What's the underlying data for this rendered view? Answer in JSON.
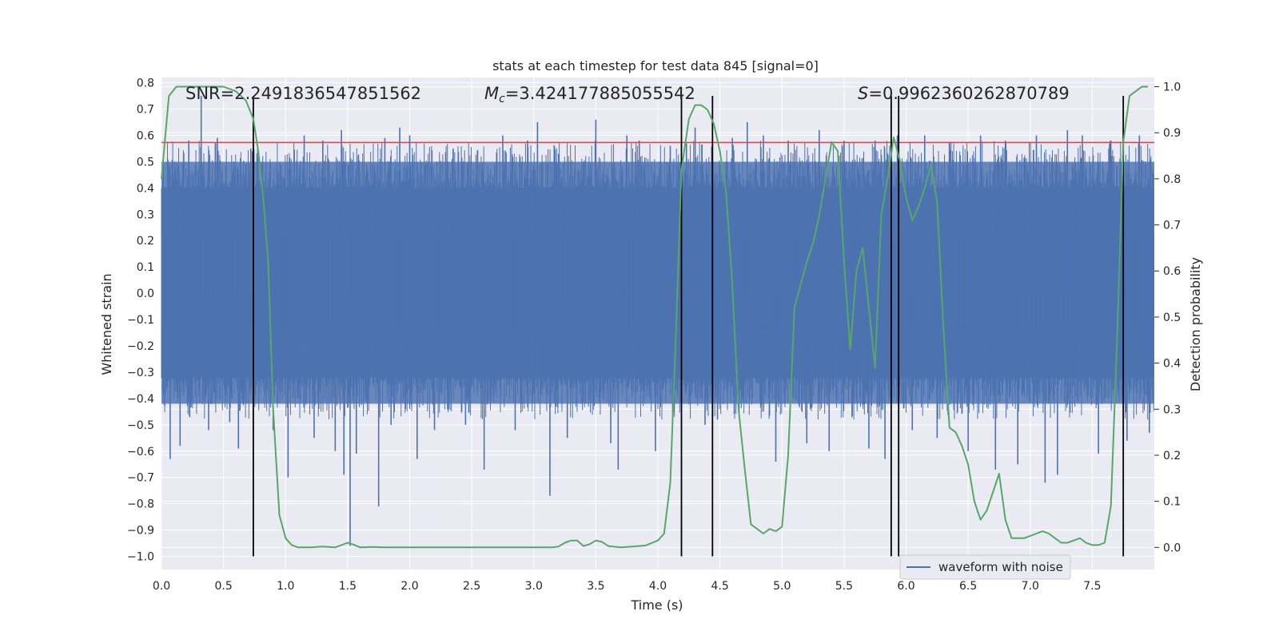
{
  "chart_data": {
    "type": "line",
    "title": "stats at each timestep for test data 845 [signal=0]",
    "xlabel": "Time (s)",
    "ylabel": "Whitened strain",
    "y2label": "Detection probability",
    "xlim": [
      0.0,
      8.0
    ],
    "ylim": [
      -1.05,
      0.82
    ],
    "y2lim": [
      -0.048,
      1.02
    ],
    "x_ticks": [
      "0.0",
      "0.5",
      "1.0",
      "1.5",
      "2.0",
      "2.5",
      "3.0",
      "3.5",
      "4.0",
      "4.5",
      "5.0",
      "5.5",
      "6.0",
      "6.5",
      "7.0",
      "7.5"
    ],
    "y_ticks": [
      "0.8",
      "0.7",
      "0.6",
      "0.5",
      "0.4",
      "0.3",
      "0.2",
      "0.1",
      "0.0",
      "−0.1",
      "−0.2",
      "−0.3",
      "−0.4",
      "−0.5",
      "−0.6",
      "−0.7",
      "−0.8",
      "−0.9",
      "−1.0"
    ],
    "y2_ticks": [
      "1.0",
      "0.9",
      "0.8",
      "0.7",
      "0.6",
      "0.5",
      "0.4",
      "0.3",
      "0.2",
      "0.1",
      "0.0"
    ],
    "grid": true,
    "legend": {
      "entries": [
        "waveform with noise"
      ],
      "placement": "lower-right"
    },
    "annotations": {
      "snr": "SNR=2.2491836547851562",
      "mc_symbol": "M",
      "mc_sub": "c",
      "mc_value": "=3.424177885055542",
      "s_symbol": "S",
      "s_value": "=0.9962360262870789"
    },
    "threshold_line": {
      "axis": "y",
      "value": 0.573,
      "color": "#c44e52"
    },
    "event_lines": {
      "x": [
        0.74,
        4.19,
        4.44,
        5.88,
        5.94,
        7.75
      ],
      "color": "#000000"
    },
    "series": [
      {
        "name": "waveform with noise",
        "axis": "left",
        "color": "#4c72b0",
        "band": {
          "core_low": -0.13,
          "core_high": 0.22,
          "dense_low": -0.42,
          "dense_high": 0.5
        },
        "spikes": [
          [
            0.06,
            0.47
          ],
          [
            0.07,
            -0.63
          ],
          [
            0.15,
            -0.58
          ],
          [
            0.22,
            0.58
          ],
          [
            0.32,
            0.75
          ],
          [
            0.38,
            -0.52
          ],
          [
            0.45,
            0.59
          ],
          [
            0.55,
            -0.49
          ],
          [
            0.62,
            -0.59
          ],
          [
            0.72,
            0.55
          ],
          [
            0.9,
            -0.52
          ],
          [
            1.02,
            -0.7
          ],
          [
            1.15,
            0.6
          ],
          [
            1.23,
            -0.55
          ],
          [
            1.3,
            0.58
          ],
          [
            1.4,
            -0.6
          ],
          [
            1.45,
            0.62
          ],
          [
            1.47,
            -0.69
          ],
          [
            1.52,
            -0.96
          ],
          [
            1.57,
            -0.61
          ],
          [
            1.75,
            -0.81
          ],
          [
            1.8,
            0.59
          ],
          [
            1.85,
            -0.5
          ],
          [
            1.92,
            0.63
          ],
          [
            2.0,
            0.6
          ],
          [
            2.06,
            -0.63
          ],
          [
            2.2,
            -0.52
          ],
          [
            2.35,
            0.55
          ],
          [
            2.45,
            -0.5
          ],
          [
            2.6,
            -0.67
          ],
          [
            2.75,
            0.6
          ],
          [
            2.85,
            -0.52
          ],
          [
            2.95,
            0.58
          ],
          [
            3.03,
            0.65
          ],
          [
            3.13,
            -0.77
          ],
          [
            3.2,
            0.53
          ],
          [
            3.27,
            -0.55
          ],
          [
            3.4,
            0.5
          ],
          [
            3.5,
            0.66
          ],
          [
            3.62,
            -0.57
          ],
          [
            3.68,
            -0.67
          ],
          [
            3.75,
            0.6
          ],
          [
            3.85,
            0.58
          ],
          [
            3.98,
            -0.6
          ],
          [
            4.1,
            0.56
          ],
          [
            4.23,
            0.57
          ],
          [
            4.3,
            0.63
          ],
          [
            4.38,
            -0.5
          ],
          [
            4.48,
            -0.48
          ],
          [
            4.6,
            0.59
          ],
          [
            4.72,
            0.65
          ],
          [
            4.85,
            0.6
          ],
          [
            4.95,
            -0.64
          ],
          [
            5.05,
            0.58
          ],
          [
            5.2,
            -0.57
          ],
          [
            5.3,
            0.62
          ],
          [
            5.38,
            -0.6
          ],
          [
            5.5,
            0.58
          ],
          [
            5.7,
            -0.59
          ],
          [
            5.75,
            0.58
          ],
          [
            5.83,
            -0.63
          ],
          [
            5.93,
            0.6
          ],
          [
            6.05,
            -0.52
          ],
          [
            6.15,
            0.6
          ],
          [
            6.25,
            -0.55
          ],
          [
            6.35,
            0.57
          ],
          [
            6.5,
            -0.6
          ],
          [
            6.6,
            0.6
          ],
          [
            6.72,
            -0.67
          ],
          [
            6.8,
            0.58
          ],
          [
            6.9,
            -0.65
          ],
          [
            7.05,
            0.6
          ],
          [
            7.12,
            -0.72
          ],
          [
            7.22,
            -0.69
          ],
          [
            7.3,
            0.62
          ],
          [
            7.42,
            0.6
          ],
          [
            7.55,
            -0.61
          ],
          [
            7.65,
            0.58
          ],
          [
            7.78,
            -0.56
          ],
          [
            7.88,
            0.6
          ],
          [
            7.96,
            -0.53
          ]
        ]
      },
      {
        "name": "",
        "axis": "right",
        "color": "#55a868",
        "x": [
          0.0,
          0.06,
          0.12,
          0.2,
          0.3,
          0.4,
          0.5,
          0.6,
          0.68,
          0.74,
          0.78,
          0.82,
          0.86,
          0.9,
          0.95,
          1.0,
          1.05,
          1.1,
          1.2,
          1.3,
          1.4,
          1.5,
          1.55,
          1.6,
          1.7,
          1.8,
          1.9,
          2.0,
          2.2,
          2.4,
          2.6,
          2.8,
          3.0,
          3.1,
          3.15,
          3.2,
          3.25,
          3.3,
          3.35,
          3.4,
          3.45,
          3.5,
          3.55,
          3.6,
          3.7,
          3.8,
          3.9,
          4.0,
          4.05,
          4.1,
          4.15,
          4.19,
          4.25,
          4.3,
          4.35,
          4.4,
          4.45,
          4.5,
          4.55,
          4.6,
          4.65,
          4.7,
          4.75,
          4.8,
          4.85,
          4.9,
          4.95,
          5.0,
          5.05,
          5.1,
          5.15,
          5.2,
          5.25,
          5.3,
          5.35,
          5.4,
          5.45,
          5.5,
          5.55,
          5.6,
          5.65,
          5.7,
          5.75,
          5.8,
          5.85,
          5.9,
          5.95,
          6.0,
          6.05,
          6.1,
          6.15,
          6.2,
          6.25,
          6.3,
          6.35,
          6.4,
          6.45,
          6.5,
          6.55,
          6.6,
          6.65,
          6.7,
          6.75,
          6.8,
          6.85,
          6.9,
          6.95,
          7.0,
          7.05,
          7.1,
          7.15,
          7.2,
          7.25,
          7.3,
          7.35,
          7.4,
          7.45,
          7.5,
          7.55,
          7.6,
          7.65,
          7.7,
          7.75,
          7.8,
          7.85,
          7.9,
          7.95
        ],
        "y": [
          0.8,
          0.98,
          1.0,
          1.0,
          1.0,
          1.0,
          1.0,
          0.99,
          0.97,
          0.93,
          0.86,
          0.76,
          0.62,
          0.3,
          0.07,
          0.02,
          0.005,
          0.0,
          0.0,
          0.002,
          0.0,
          0.01,
          0.006,
          0.0,
          0.001,
          0.0,
          0.0,
          0.0,
          0.0,
          0.0,
          0.0,
          0.0,
          0.0,
          0.0,
          0.0,
          0.002,
          0.01,
          0.015,
          0.015,
          0.003,
          0.007,
          0.015,
          0.012,
          0.003,
          0.0,
          0.002,
          0.004,
          0.015,
          0.03,
          0.14,
          0.5,
          0.82,
          0.93,
          0.96,
          0.96,
          0.95,
          0.92,
          0.86,
          0.77,
          0.57,
          0.3,
          0.17,
          0.05,
          0.04,
          0.03,
          0.04,
          0.035,
          0.045,
          0.2,
          0.52,
          0.57,
          0.62,
          0.66,
          0.72,
          0.8,
          0.88,
          0.86,
          0.62,
          0.43,
          0.6,
          0.65,
          0.52,
          0.39,
          0.72,
          0.8,
          0.89,
          0.84,
          0.76,
          0.71,
          0.74,
          0.78,
          0.83,
          0.75,
          0.48,
          0.26,
          0.25,
          0.22,
          0.18,
          0.1,
          0.06,
          0.08,
          0.12,
          0.16,
          0.06,
          0.02,
          0.02,
          0.02,
          0.025,
          0.03,
          0.035,
          0.03,
          0.02,
          0.01,
          0.01,
          0.015,
          0.02,
          0.01,
          0.005,
          0.005,
          0.01,
          0.09,
          0.45,
          0.88,
          0.98,
          0.99,
          1.0,
          1.0
        ]
      }
    ]
  }
}
